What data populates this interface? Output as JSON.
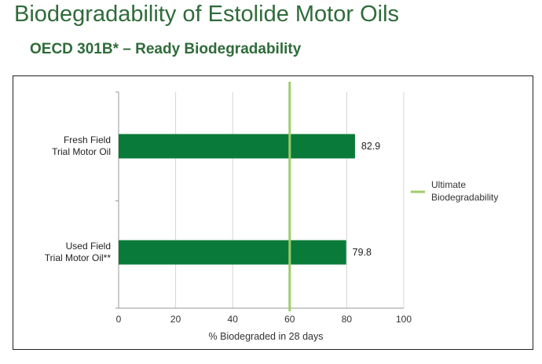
{
  "page": {
    "title": "Biodegradability of Estolide Motor Oils",
    "subtitle": "OECD 301B* – Ready Biodegradability"
  },
  "chart_data": {
    "type": "bar",
    "orientation": "horizontal",
    "categories": [
      [
        "Fresh Field",
        "Trial Motor Oil"
      ],
      [
        "Used Field",
        "Trial Motor Oil**"
      ]
    ],
    "values": [
      82.9,
      79.8
    ],
    "value_labels": [
      "82.9",
      "79.8"
    ],
    "xlabel": "% Biodegraded in 28 days",
    "xlim": [
      0,
      100
    ],
    "xticks": [
      0,
      20,
      40,
      60,
      80,
      100
    ],
    "grid": true,
    "bar_color": "#0a7a3a",
    "reference_line": {
      "value": 60,
      "label": [
        "Ultimate",
        "Biodegradability"
      ],
      "color": "#9dcc6a"
    },
    "legend": {
      "placement": "right"
    }
  }
}
